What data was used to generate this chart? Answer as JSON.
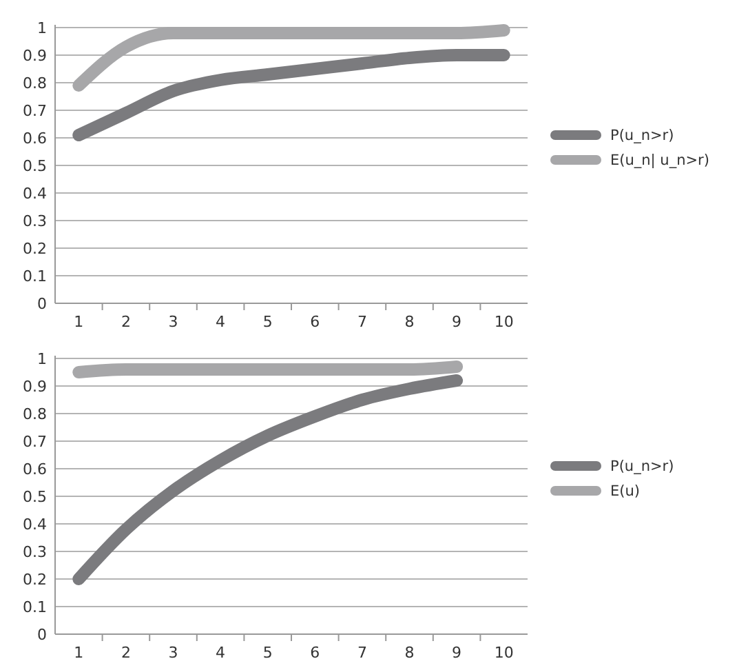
{
  "chart_data": [
    {
      "type": "line",
      "categories": [
        "1",
        "2",
        "3",
        "4",
        "5",
        "6",
        "7",
        "8",
        "9",
        "10"
      ],
      "series": [
        {
          "name": "P(u_n>r)",
          "color": "#7b7b7e",
          "values": [
            0.61,
            0.69,
            0.77,
            0.81,
            0.83,
            0.85,
            0.87,
            0.89,
            0.9,
            0.9
          ]
        },
        {
          "name": "E(u_n| u_n>r)",
          "color": "#a7a7a9",
          "values": [
            0.79,
            0.93,
            0.98,
            0.98,
            0.98,
            0.98,
            0.98,
            0.98,
            0.98,
            0.99
          ]
        }
      ],
      "ylim": [
        0,
        1
      ],
      "yticks": [
        0,
        0.1,
        0.2,
        0.3,
        0.4,
        0.5,
        0.6,
        0.7,
        0.8,
        0.9,
        1
      ],
      "grid": "y",
      "legend": "right",
      "marker": "none",
      "line_style": "solid"
    },
    {
      "type": "line",
      "categories": [
        "1",
        "2",
        "3",
        "4",
        "5",
        "6",
        "7",
        "8",
        "9",
        "10"
      ],
      "series": [
        {
          "name": "P(u_n>r)",
          "color": "#7b7b7e",
          "values": [
            0.2,
            0.38,
            0.52,
            0.63,
            0.72,
            0.79,
            0.85,
            0.89,
            0.92,
            null
          ]
        },
        {
          "name": "E(u)",
          "color": "#a7a7a9",
          "values": [
            0.95,
            0.96,
            0.96,
            0.96,
            0.96,
            0.96,
            0.96,
            0.96,
            0.97,
            null
          ]
        }
      ],
      "ylim": [
        0,
        1
      ],
      "yticks": [
        0,
        0.1,
        0.2,
        0.3,
        0.4,
        0.5,
        0.6,
        0.7,
        0.8,
        0.9,
        1
      ],
      "grid": "y",
      "legend": "right",
      "marker": "none",
      "line_style": "solid"
    }
  ]
}
